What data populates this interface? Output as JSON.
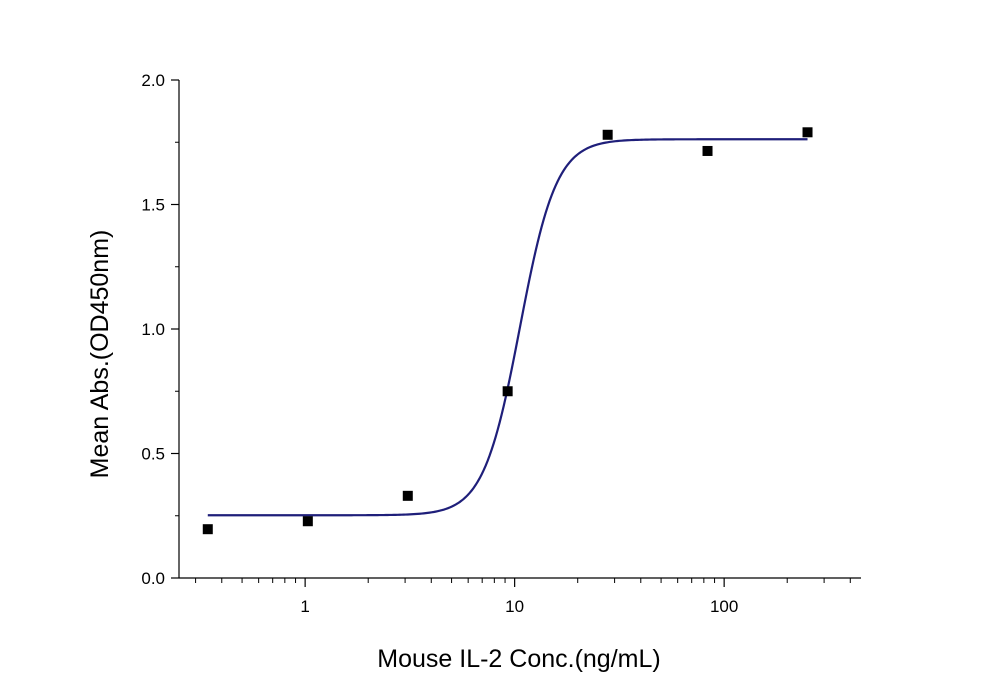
{
  "chart_data": {
    "type": "scatter",
    "title": "",
    "xlabel": "Mouse IL-2 Conc.(ng/mL)",
    "ylabel": "Mean Abs.(OD450nm)",
    "xscale": "log",
    "xlim": [
      0.25,
      450
    ],
    "ylim": [
      0.0,
      2.0
    ],
    "x_ticks": [
      {
        "value": 1,
        "label": "1"
      },
      {
        "value": 10,
        "label": "10"
      },
      {
        "value": 100,
        "label": "100"
      }
    ],
    "y_ticks": [
      {
        "value": 0.0,
        "label": "0.0"
      },
      {
        "value": 0.5,
        "label": "0.5"
      },
      {
        "value": 1.0,
        "label": "1.0"
      },
      {
        "value": 1.5,
        "label": "1.5"
      },
      {
        "value": 2.0,
        "label": "2.0"
      }
    ],
    "grid": false,
    "legend": false,
    "series": [
      {
        "marker": "square",
        "color": "#000000",
        "points": [
          {
            "x": 0.343,
            "y": 0.196
          },
          {
            "x": 1.03,
            "y": 0.228
          },
          {
            "x": 3.09,
            "y": 0.33
          },
          {
            "x": 9.26,
            "y": 0.75
          },
          {
            "x": 27.8,
            "y": 1.78
          },
          {
            "x": 83.3,
            "y": 1.715
          },
          {
            "x": 250,
            "y": 1.79
          }
        ]
      }
    ],
    "fit_curve": {
      "model": "4PL",
      "color": "#1f1f7a",
      "bottom": 0.252,
      "top": 1.762,
      "ec50": 10.6,
      "hill": 5.0,
      "x_range": [
        0.343,
        250
      ]
    }
  }
}
